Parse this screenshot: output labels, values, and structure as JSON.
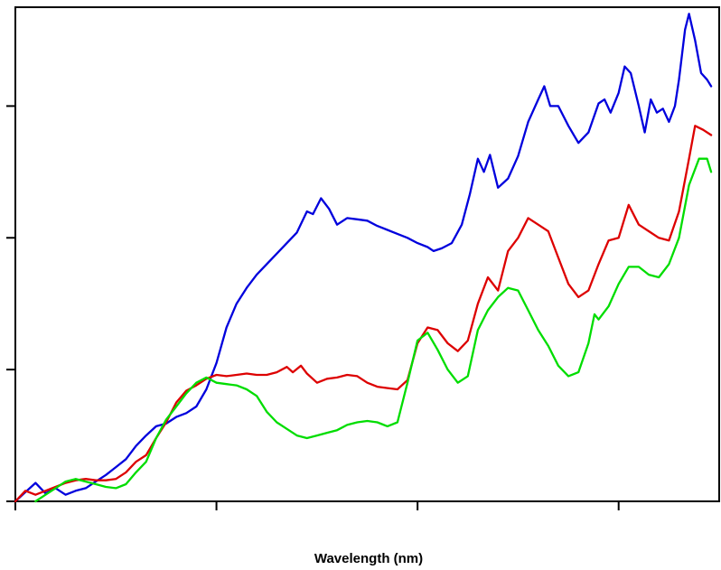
{
  "chart_data": {
    "type": "line",
    "title": "",
    "xlabel": "Wavelength (nm)",
    "ylabel": "",
    "xlim": [
      0,
      3.5
    ],
    "ylim": [
      0,
      3.75
    ],
    "x_ticks": [
      0,
      1,
      2,
      3
    ],
    "y_ticks": [
      0,
      1,
      2,
      3
    ],
    "grid": false,
    "legend": "none",
    "series": [
      {
        "color": "#0000dd",
        "points": [
          [
            0,
            0
          ],
          [
            0.05,
            0.07
          ],
          [
            0.1,
            0.14
          ],
          [
            0.15,
            0.06
          ],
          [
            0.2,
            0.1
          ],
          [
            0.25,
            0.05
          ],
          [
            0.3,
            0.08
          ],
          [
            0.35,
            0.1
          ],
          [
            0.4,
            0.15
          ],
          [
            0.45,
            0.2
          ],
          [
            0.5,
            0.26
          ],
          [
            0.55,
            0.32
          ],
          [
            0.6,
            0.42
          ],
          [
            0.65,
            0.5
          ],
          [
            0.7,
            0.57
          ],
          [
            0.75,
            0.59
          ],
          [
            0.8,
            0.64
          ],
          [
            0.85,
            0.67
          ],
          [
            0.9,
            0.72
          ],
          [
            0.95,
            0.85
          ],
          [
            1.0,
            1.05
          ],
          [
            1.05,
            1.32
          ],
          [
            1.1,
            1.5
          ],
          [
            1.15,
            1.62
          ],
          [
            1.2,
            1.72
          ],
          [
            1.25,
            1.8
          ],
          [
            1.3,
            1.88
          ],
          [
            1.35,
            1.96
          ],
          [
            1.4,
            2.04
          ],
          [
            1.45,
            2.2
          ],
          [
            1.48,
            2.18
          ],
          [
            1.52,
            2.3
          ],
          [
            1.56,
            2.22
          ],
          [
            1.6,
            2.1
          ],
          [
            1.65,
            2.15
          ],
          [
            1.7,
            2.14
          ],
          [
            1.75,
            2.13
          ],
          [
            1.8,
            2.09
          ],
          [
            1.85,
            2.06
          ],
          [
            1.9,
            2.03
          ],
          [
            1.95,
            2.0
          ],
          [
            2.0,
            1.96
          ],
          [
            2.05,
            1.93
          ],
          [
            2.08,
            1.9
          ],
          [
            2.12,
            1.92
          ],
          [
            2.17,
            1.96
          ],
          [
            2.22,
            2.1
          ],
          [
            2.26,
            2.33
          ],
          [
            2.3,
            2.6
          ],
          [
            2.33,
            2.5
          ],
          [
            2.36,
            2.63
          ],
          [
            2.4,
            2.38
          ],
          [
            2.45,
            2.45
          ],
          [
            2.5,
            2.62
          ],
          [
            2.55,
            2.88
          ],
          [
            2.6,
            3.05
          ],
          [
            2.63,
            3.15
          ],
          [
            2.66,
            3.0
          ],
          [
            2.7,
            3.0
          ],
          [
            2.75,
            2.85
          ],
          [
            2.8,
            2.72
          ],
          [
            2.85,
            2.8
          ],
          [
            2.9,
            3.02
          ],
          [
            2.93,
            3.05
          ],
          [
            2.96,
            2.95
          ],
          [
            3.0,
            3.1
          ],
          [
            3.03,
            3.3
          ],
          [
            3.06,
            3.25
          ],
          [
            3.1,
            3.0
          ],
          [
            3.13,
            2.8
          ],
          [
            3.16,
            3.05
          ],
          [
            3.19,
            2.95
          ],
          [
            3.22,
            2.98
          ],
          [
            3.25,
            2.88
          ],
          [
            3.28,
            3.0
          ],
          [
            3.3,
            3.2
          ],
          [
            3.33,
            3.58
          ],
          [
            3.35,
            3.7
          ],
          [
            3.38,
            3.5
          ],
          [
            3.41,
            3.25
          ],
          [
            3.44,
            3.2
          ],
          [
            3.46,
            3.15
          ]
        ]
      },
      {
        "color": "#dd0000",
        "points": [
          [
            0,
            0
          ],
          [
            0.05,
            0.08
          ],
          [
            0.1,
            0.05
          ],
          [
            0.15,
            0.08
          ],
          [
            0.2,
            0.11
          ],
          [
            0.25,
            0.14
          ],
          [
            0.3,
            0.16
          ],
          [
            0.35,
            0.17
          ],
          [
            0.4,
            0.16
          ],
          [
            0.45,
            0.16
          ],
          [
            0.5,
            0.17
          ],
          [
            0.55,
            0.22
          ],
          [
            0.6,
            0.3
          ],
          [
            0.65,
            0.35
          ],
          [
            0.7,
            0.48
          ],
          [
            0.75,
            0.6
          ],
          [
            0.8,
            0.75
          ],
          [
            0.85,
            0.84
          ],
          [
            0.9,
            0.88
          ],
          [
            0.95,
            0.93
          ],
          [
            1.0,
            0.96
          ],
          [
            1.05,
            0.95
          ],
          [
            1.1,
            0.96
          ],
          [
            1.15,
            0.97
          ],
          [
            1.2,
            0.96
          ],
          [
            1.25,
            0.96
          ],
          [
            1.3,
            0.98
          ],
          [
            1.35,
            1.02
          ],
          [
            1.38,
            0.98
          ],
          [
            1.42,
            1.03
          ],
          [
            1.45,
            0.97
          ],
          [
            1.5,
            0.9
          ],
          [
            1.55,
            0.93
          ],
          [
            1.6,
            0.94
          ],
          [
            1.65,
            0.96
          ],
          [
            1.7,
            0.95
          ],
          [
            1.75,
            0.9
          ],
          [
            1.8,
            0.87
          ],
          [
            1.85,
            0.86
          ],
          [
            1.9,
            0.85
          ],
          [
            1.95,
            0.92
          ],
          [
            2.0,
            1.2
          ],
          [
            2.05,
            1.32
          ],
          [
            2.1,
            1.3
          ],
          [
            2.15,
            1.2
          ],
          [
            2.2,
            1.14
          ],
          [
            2.25,
            1.22
          ],
          [
            2.3,
            1.5
          ],
          [
            2.35,
            1.7
          ],
          [
            2.4,
            1.6
          ],
          [
            2.45,
            1.9
          ],
          [
            2.5,
            2.0
          ],
          [
            2.55,
            2.15
          ],
          [
            2.6,
            2.1
          ],
          [
            2.65,
            2.05
          ],
          [
            2.7,
            1.85
          ],
          [
            2.75,
            1.65
          ],
          [
            2.8,
            1.55
          ],
          [
            2.85,
            1.6
          ],
          [
            2.9,
            1.8
          ],
          [
            2.95,
            1.98
          ],
          [
            3.0,
            2.0
          ],
          [
            3.05,
            2.25
          ],
          [
            3.1,
            2.1
          ],
          [
            3.15,
            2.05
          ],
          [
            3.2,
            2.0
          ],
          [
            3.25,
            1.98
          ],
          [
            3.3,
            2.2
          ],
          [
            3.35,
            2.6
          ],
          [
            3.38,
            2.85
          ],
          [
            3.42,
            2.82
          ],
          [
            3.46,
            2.78
          ]
        ]
      },
      {
        "color": "#00dd00",
        "points": [
          [
            0.1,
            0
          ],
          [
            0.15,
            0.05
          ],
          [
            0.2,
            0.1
          ],
          [
            0.25,
            0.15
          ],
          [
            0.3,
            0.17
          ],
          [
            0.35,
            0.15
          ],
          [
            0.4,
            0.13
          ],
          [
            0.45,
            0.11
          ],
          [
            0.5,
            0.1
          ],
          [
            0.55,
            0.13
          ],
          [
            0.6,
            0.22
          ],
          [
            0.65,
            0.3
          ],
          [
            0.7,
            0.48
          ],
          [
            0.75,
            0.62
          ],
          [
            0.8,
            0.72
          ],
          [
            0.85,
            0.82
          ],
          [
            0.9,
            0.9
          ],
          [
            0.95,
            0.94
          ],
          [
            1.0,
            0.9
          ],
          [
            1.05,
            0.89
          ],
          [
            1.1,
            0.88
          ],
          [
            1.15,
            0.85
          ],
          [
            1.2,
            0.8
          ],
          [
            1.25,
            0.68
          ],
          [
            1.3,
            0.6
          ],
          [
            1.35,
            0.55
          ],
          [
            1.4,
            0.5
          ],
          [
            1.45,
            0.48
          ],
          [
            1.5,
            0.5
          ],
          [
            1.55,
            0.52
          ],
          [
            1.6,
            0.54
          ],
          [
            1.65,
            0.58
          ],
          [
            1.7,
            0.6
          ],
          [
            1.75,
            0.61
          ],
          [
            1.8,
            0.6
          ],
          [
            1.85,
            0.57
          ],
          [
            1.9,
            0.6
          ],
          [
            1.95,
            0.9
          ],
          [
            2.0,
            1.22
          ],
          [
            2.05,
            1.28
          ],
          [
            2.1,
            1.15
          ],
          [
            2.15,
            1.0
          ],
          [
            2.2,
            0.9
          ],
          [
            2.25,
            0.95
          ],
          [
            2.3,
            1.3
          ],
          [
            2.35,
            1.45
          ],
          [
            2.4,
            1.55
          ],
          [
            2.45,
            1.62
          ],
          [
            2.5,
            1.6
          ],
          [
            2.55,
            1.45
          ],
          [
            2.6,
            1.3
          ],
          [
            2.65,
            1.18
          ],
          [
            2.7,
            1.03
          ],
          [
            2.75,
            0.95
          ],
          [
            2.8,
            0.98
          ],
          [
            2.85,
            1.2
          ],
          [
            2.88,
            1.42
          ],
          [
            2.9,
            1.38
          ],
          [
            2.95,
            1.48
          ],
          [
            3.0,
            1.65
          ],
          [
            3.05,
            1.78
          ],
          [
            3.1,
            1.78
          ],
          [
            3.15,
            1.72
          ],
          [
            3.2,
            1.7
          ],
          [
            3.25,
            1.8
          ],
          [
            3.3,
            2.0
          ],
          [
            3.35,
            2.4
          ],
          [
            3.4,
            2.6
          ],
          [
            3.44,
            2.6
          ],
          [
            3.46,
            2.5
          ]
        ]
      }
    ]
  }
}
